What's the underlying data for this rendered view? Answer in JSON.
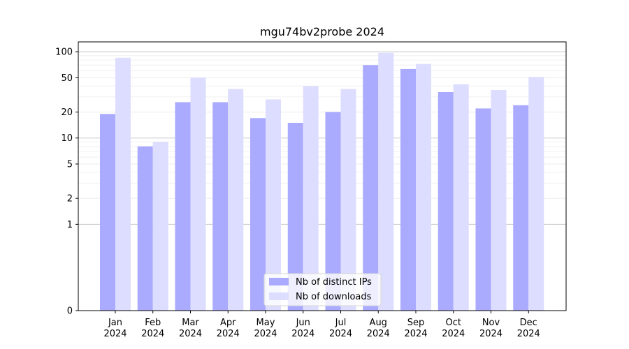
{
  "chart_data": {
    "type": "bar",
    "title": "mgu74bv2probe 2024",
    "xlabel": "",
    "ylabel": "",
    "yscale": "symlog",
    "ylim": [
      0,
      130
    ],
    "yticks": [
      0,
      1,
      2,
      5,
      10,
      20,
      50,
      100
    ],
    "grid": true,
    "legend_position": "bottom-center",
    "categories": [
      "Jan\n2024",
      "Feb\n2024",
      "Mar\n2024",
      "Apr\n2024",
      "May\n2024",
      "Jun\n2024",
      "Jul\n2024",
      "Aug\n2024",
      "Sep\n2024",
      "Oct\n2024",
      "Nov\n2024",
      "Dec\n2024"
    ],
    "series": [
      {
        "name": "Nb of distinct IPs",
        "color": "#aaaaff",
        "values": [
          19,
          8,
          26,
          26,
          17,
          15,
          20,
          70,
          63,
          34,
          22,
          24
        ]
      },
      {
        "name": "Nb of downloads",
        "color": "#ddddff",
        "values": [
          85,
          9,
          50,
          37,
          28,
          40,
          37,
          97,
          72,
          42,
          36,
          51
        ]
      }
    ]
  }
}
